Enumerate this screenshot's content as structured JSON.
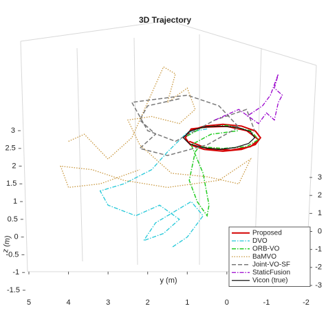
{
  "chart_data": {
    "type": "line3d",
    "title": "3D Trajectory",
    "xlabel": "y (m)",
    "ylabel": "z (m)",
    "xlim": [
      5,
      -2
    ],
    "xticks": [
      5,
      4,
      3,
      2,
      1,
      0,
      -1,
      -2
    ],
    "ylim": [
      -1.5,
      3
    ],
    "yticks": [
      -1.5,
      -1,
      -0.5,
      0,
      0.5,
      1,
      1.5,
      2,
      2.5,
      3
    ],
    "x2ticks": [
      3,
      2,
      1,
      0,
      -1,
      -2,
      -3
    ],
    "legend": "lower right",
    "series": [
      {
        "name": "Proposed",
        "color": "#d40000",
        "dash": "solid",
        "width": 2,
        "x": [
          1.05,
          0.92,
          0.57,
          0.1,
          -0.37,
          -0.72,
          -0.85,
          -0.72,
          -0.37,
          0.1,
          0.57,
          0.92,
          1.05,
          0.9,
          0.5,
          0.0,
          -0.5,
          -0.8,
          -0.6,
          -0.1,
          0.5,
          0.95
        ],
        "y": [
          2.8,
          3.0,
          3.13,
          3.18,
          3.13,
          2.99,
          2.8,
          2.61,
          2.47,
          2.42,
          2.47,
          2.6,
          2.8,
          3.05,
          3.1,
          3.12,
          3.0,
          2.75,
          2.55,
          2.45,
          2.5,
          2.7
        ]
      },
      {
        "name": "DVO",
        "color": "#22c8d8",
        "dash": "dashdot",
        "width": 1.3,
        "x": [
          0.5,
          1.0,
          1.5,
          1.9,
          2.6,
          3.2,
          3.0,
          2.3,
          1.7,
          1.2,
          1.6,
          2.1,
          1.8,
          0.9,
          0.6,
          1.0,
          1.4
        ],
        "y": [
          3.05,
          2.95,
          2.4,
          1.9,
          1.5,
          1.3,
          0.9,
          0.6,
          0.9,
          0.5,
          0.1,
          -0.1,
          0.4,
          1.0,
          0.6,
          0.0,
          -0.3
        ]
      },
      {
        "name": "ORB-VO",
        "color": "#22cc22",
        "dash": "dashdot",
        "width": 1.5,
        "x": [
          1.0,
          0.6,
          0.0,
          -0.6,
          -0.8,
          -0.5,
          0.1,
          0.7,
          0.8,
          0.95,
          0.75,
          0.5,
          0.45,
          0.6,
          0.9,
          0.4,
          -0.3
        ],
        "y": [
          2.85,
          3.1,
          3.15,
          3.0,
          2.75,
          2.55,
          2.5,
          2.55,
          2.4,
          1.6,
          1.0,
          0.6,
          0.9,
          1.8,
          2.6,
          2.9,
          3.0
        ]
      },
      {
        "name": "BaMVO",
        "color": "#c8963c",
        "dash": "dotted",
        "width": 1.3,
        "x": [
          4.0,
          3.6,
          3.0,
          2.4,
          2.0,
          1.6,
          1.3,
          1.5,
          1.0,
          0.8,
          1.2,
          1.9,
          2.5,
          2.2,
          1.4,
          0.5,
          -0.3,
          -0.6,
          0.2,
          1.5,
          2.6,
          3.4,
          4.2,
          4.0,
          3.2,
          2.2
        ],
        "y": [
          2.7,
          2.9,
          2.2,
          2.8,
          3.8,
          4.8,
          4.6,
          3.8,
          4.2,
          3.6,
          3.2,
          3.4,
          3.3,
          2.6,
          1.8,
          1.7,
          1.5,
          2.2,
          1.6,
          1.4,
          1.6,
          1.9,
          2.0,
          1.4,
          1.5,
          1.9
        ]
      },
      {
        "name": "Joint-VO-SF",
        "color": "#777777",
        "dash": "dashed",
        "width": 1.5,
        "x": [
          1.2,
          2.0,
          2.2,
          1.8,
          2.2,
          1.5,
          0.5,
          -0.3,
          0.2,
          1.0,
          2.4,
          2.0,
          1.3,
          0.3,
          -0.5,
          -0.7
        ],
        "y": [
          3.9,
          3.7,
          3.3,
          2.9,
          2.5,
          2.3,
          2.6,
          3.1,
          3.7,
          4.0,
          3.8,
          3.0,
          2.7,
          3.3,
          3.6,
          3.0
        ]
      },
      {
        "name": "StaticFusion",
        "color": "#9900cc",
        "dash": "dashdot",
        "width": 1.3,
        "x": [
          0.3,
          -0.3,
          -0.8,
          -1.0,
          -1.2,
          -1.3,
          -1.4,
          -1.2,
          -1.3,
          -1.1,
          -0.9,
          -0.5
        ],
        "y": [
          3.3,
          3.6,
          3.2,
          3.5,
          3.3,
          3.8,
          4.0,
          4.2,
          4.6,
          4.0,
          3.7,
          3.4
        ]
      },
      {
        "name": "Vicon (true)",
        "color": "#111111",
        "dash": "solid",
        "width": 1.3,
        "x": [
          1.1,
          0.95,
          0.6,
          0.2,
          -0.25,
          -0.6,
          -0.7,
          -0.55,
          -0.2,
          0.2,
          0.6,
          0.95,
          1.1
        ],
        "y": [
          2.8,
          2.98,
          3.1,
          3.13,
          3.1,
          2.97,
          2.8,
          2.64,
          2.52,
          2.47,
          2.52,
          2.63,
          2.8
        ]
      }
    ]
  }
}
